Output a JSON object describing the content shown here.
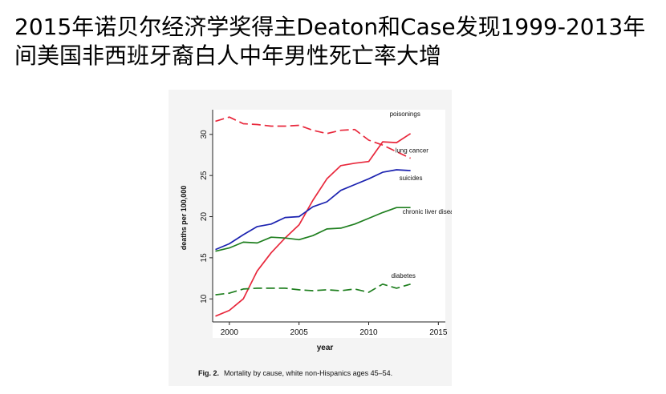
{
  "slide": {
    "title": "2015年诺贝尔经济学奖得主Deaton和Case发现1999-2013年间美国非西班牙裔白人中年男性死亡率大增"
  },
  "caption": {
    "figure_number": "Fig. 2.",
    "text": "Mortality by cause, white non-Hispanics ages 45–54."
  },
  "chart_data": {
    "type": "line",
    "title": "",
    "xlabel": "year",
    "ylabel": "deaths per 100,000",
    "xlim": [
      1998.8,
      2015.5
    ],
    "ylim": [
      7.2,
      33
    ],
    "xticks": [
      2000,
      2005,
      2010,
      2015
    ],
    "yticks": [
      10,
      15,
      20,
      25,
      30
    ],
    "grid": false,
    "legend": "direct labels at line ends",
    "x": [
      1999,
      2000,
      2001,
      2002,
      2003,
      2004,
      2005,
      2006,
      2007,
      2008,
      2009,
      2010,
      2011,
      2012,
      2013
    ],
    "series": [
      {
        "name": "poisonings",
        "color": "#e8283c",
        "dash": "solid",
        "values": [
          7.9,
          8.6,
          10.0,
          13.4,
          15.6,
          17.4,
          19.0,
          22.0,
          24.6,
          26.2,
          26.5,
          26.7,
          29.1,
          29.0,
          30.1
        ]
      },
      {
        "name": "lung cancer",
        "color": "#e8283c",
        "dash": "dashed",
        "values": [
          31.6,
          32.1,
          31.3,
          31.2,
          31.0,
          31.0,
          31.1,
          30.5,
          30.1,
          30.5,
          30.6,
          29.3,
          28.7,
          27.9,
          27.1
        ]
      },
      {
        "name": "suicides",
        "color": "#1b22b0",
        "dash": "solid",
        "values": [
          16.0,
          16.7,
          17.8,
          18.8,
          19.1,
          19.9,
          20.0,
          21.2,
          21.8,
          23.2,
          23.9,
          24.6,
          25.4,
          25.7,
          25.6
        ]
      },
      {
        "name": "chronic liver diseases",
        "color": "#1f7f1f",
        "dash": "solid",
        "values": [
          15.8,
          16.2,
          16.9,
          16.8,
          17.5,
          17.4,
          17.2,
          17.7,
          18.5,
          18.6,
          19.1,
          19.8,
          20.5,
          21.1,
          21.1
        ]
      },
      {
        "name": "diabetes",
        "color": "#1f7f1f",
        "dash": "dashed",
        "values": [
          10.5,
          10.7,
          11.2,
          11.3,
          11.3,
          11.3,
          11.1,
          11.0,
          11.1,
          11.0,
          11.2,
          10.8,
          11.8,
          11.3,
          11.8
        ]
      }
    ]
  }
}
